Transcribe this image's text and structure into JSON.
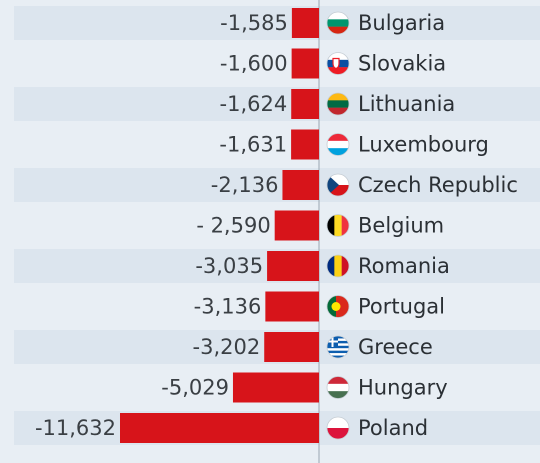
{
  "chart_data": {
    "type": "bar",
    "orientation": "horizontal",
    "categories": [
      "Bulgaria",
      "Slovakia",
      "Lithuania",
      "Luxembourg",
      "Czech Republic",
      "Belgium",
      "Romania",
      "Portugal",
      "Greece",
      "Hungary",
      "Poland"
    ],
    "values": [
      -1585,
      -1600,
      -1624,
      -1631,
      -2136,
      -2590,
      -3035,
      -3136,
      -3202,
      -5029,
      -11632
    ],
    "value_labels": [
      "-1,585",
      "-1,600",
      "-1,624",
      "-1,631",
      "-2,136",
      "- 2,590",
      "-3,035",
      "-3,136",
      "-3,202",
      "-5,029",
      "-11,632"
    ],
    "bar_color": "#d7141a",
    "row_band_color": "#dce5ee",
    "background_color": "#e8eef4",
    "flags": [
      {
        "country": "Bulgaria",
        "icon": "bulgaria-flag-icon",
        "colors": [
          "#ffffff",
          "#00966e",
          "#d62612"
        ]
      },
      {
        "country": "Slovakia",
        "icon": "slovakia-flag-icon",
        "colors": [
          "#ffffff",
          "#0b4ea2",
          "#ee1c25"
        ]
      },
      {
        "country": "Lithuania",
        "icon": "lithuania-flag-icon",
        "colors": [
          "#fdb913",
          "#006a44",
          "#c1272d"
        ]
      },
      {
        "country": "Luxembourg",
        "icon": "luxembourg-flag-icon",
        "colors": [
          "#ed2939",
          "#ffffff",
          "#00a1de"
        ]
      },
      {
        "country": "Czech Republic",
        "icon": "czech-flag-icon",
        "colors": [
          "#ffffff",
          "#d7141a",
          "#11457e"
        ]
      },
      {
        "country": "Belgium",
        "icon": "belgium-flag-icon",
        "colors": [
          "#000000",
          "#fdda24",
          "#ef3340"
        ]
      },
      {
        "country": "Romania",
        "icon": "romania-flag-icon",
        "colors": [
          "#002b7f",
          "#fcd116",
          "#ce1126"
        ]
      },
      {
        "country": "Portugal",
        "icon": "portugal-flag-icon",
        "colors": [
          "#046a38",
          "#da291c",
          "#ffe900"
        ]
      },
      {
        "country": "Greece",
        "icon": "greece-flag-icon",
        "colors": [
          "#0d5eaf",
          "#ffffff"
        ]
      },
      {
        "country": "Hungary",
        "icon": "hungary-flag-icon",
        "colors": [
          "#ce2939",
          "#ffffff",
          "#477050"
        ]
      },
      {
        "country": "Poland",
        "icon": "poland-flag-icon",
        "colors": [
          "#ffffff",
          "#dc143c"
        ]
      }
    ]
  }
}
